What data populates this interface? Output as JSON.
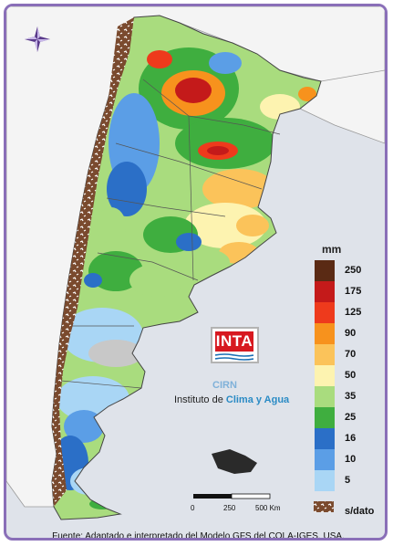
{
  "legend": {
    "title": "mm",
    "items": [
      {
        "label": "250",
        "color": "#5a2a14"
      },
      {
        "label": "175",
        "color": "#c41a1a"
      },
      {
        "label": "125",
        "color": "#ee3a1c"
      },
      {
        "label": "90",
        "color": "#f7921d"
      },
      {
        "label": "70",
        "color": "#fbc35a"
      },
      {
        "label": "50",
        "color": "#fdf3b0"
      },
      {
        "label": "35",
        "color": "#a9dc7e"
      },
      {
        "label": "25",
        "color": "#3fae3f"
      },
      {
        "label": "16",
        "color": "#2b6fc7"
      },
      {
        "label": "10",
        "color": "#5b9ee6"
      },
      {
        "label": "5",
        "color": "#a9d6f5"
      }
    ],
    "nodata_label": "s/dato"
  },
  "scale": {
    "zero": "0",
    "mid": "250",
    "end": "500 Km"
  },
  "logo": {
    "text": "INTA",
    "cirn": "CIRN",
    "institute_prefix": "Instituto de ",
    "institute_name": "Clima y Agua"
  },
  "footer": "Fuente: Adaptado e interpretado del Modelo GFS del COLA-IGES, USA.",
  "colors": {
    "frame": "#8a6fb8",
    "ocean": "#dfe3ea",
    "neighbor": "#f4f4f4",
    "andes_nodata": "#8a5a3a",
    "compass": "#5a3a8a"
  },
  "icons": {
    "compass": "compass-rose-icon",
    "nodata_swatch": "nodata-pattern-icon"
  }
}
